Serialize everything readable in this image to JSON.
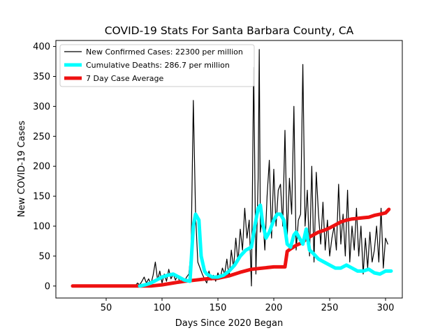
{
  "chart_data": {
    "type": "line",
    "title": "COVID-19 Stats For Santa Barbara County, CA",
    "xlabel": "Days Since 2020 Began",
    "ylabel": "New COVID-19 Cases",
    "xlim": [
      5,
      315
    ],
    "ylim": [
      -20,
      410
    ],
    "xticks": [
      50,
      100,
      150,
      200,
      250,
      300
    ],
    "yticks": [
      0,
      50,
      100,
      150,
      200,
      250,
      300,
      350,
      400
    ],
    "grid": false,
    "legend_position": "top-left",
    "series": [
      {
        "name": "New Confirmed Cases: 22300 per million",
        "color": "#000000",
        "style": "thin",
        "x": [
          76,
          78,
          80,
          82,
          84,
          86,
          88,
          90,
          92,
          94,
          96,
          98,
          100,
          102,
          104,
          106,
          108,
          110,
          112,
          114,
          116,
          118,
          120,
          122,
          124,
          126,
          128,
          130,
          132,
          134,
          136,
          138,
          140,
          142,
          144,
          146,
          148,
          150,
          152,
          154,
          156,
          158,
          160,
          162,
          164,
          166,
          168,
          170,
          172,
          174,
          176,
          178,
          180,
          182,
          184,
          186,
          187,
          188,
          190,
          192,
          194,
          196,
          198,
          200,
          202,
          204,
          206,
          208,
          210,
          212,
          214,
          216,
          218,
          220,
          222,
          224,
          226,
          228,
          230,
          232,
          234,
          236,
          238,
          240,
          242,
          244,
          246,
          248,
          250,
          252,
          254,
          256,
          258,
          260,
          262,
          264,
          266,
          268,
          270,
          272,
          274,
          276,
          278,
          280,
          282,
          284,
          286,
          288,
          290,
          292,
          294,
          296,
          298,
          300,
          302
        ],
        "y": [
          0,
          5,
          2,
          8,
          15,
          5,
          12,
          3,
          18,
          40,
          10,
          25,
          5,
          20,
          8,
          28,
          12,
          20,
          10,
          18,
          5,
          12,
          8,
          15,
          20,
          60,
          310,
          120,
          40,
          30,
          20,
          12,
          5,
          25,
          10,
          18,
          8,
          22,
          12,
          30,
          20,
          45,
          15,
          60,
          30,
          80,
          40,
          95,
          60,
          130,
          80,
          110,
          0,
          365,
          20,
          180,
          395,
          90,
          120,
          60,
          150,
          210,
          80,
          195,
          100,
          160,
          170,
          100,
          260,
          80,
          180,
          120,
          300,
          60,
          110,
          120,
          370,
          100,
          160,
          50,
          200,
          40,
          190,
          120,
          70,
          140,
          60,
          110,
          50,
          80,
          100,
          60,
          170,
          70,
          120,
          50,
          160,
          40,
          100,
          60,
          130,
          50,
          100,
          20,
          80,
          30,
          90,
          40,
          60,
          100,
          40,
          130,
          30,
          80,
          70
        ]
      },
      {
        "name": "Cumulative Deaths: 286.7 per million",
        "color": "#00ffff",
        "style": "thick",
        "x": [
          80,
          85,
          90,
          95,
          100,
          105,
          110,
          115,
          120,
          125,
          128,
          130,
          133,
          135,
          138,
          140,
          145,
          150,
          155,
          160,
          165,
          170,
          175,
          180,
          183,
          186,
          188,
          190,
          193,
          196,
          200,
          203,
          206,
          209,
          212,
          215,
          218,
          220,
          223,
          226,
          229,
          232,
          235,
          240,
          245,
          250,
          255,
          260,
          265,
          270,
          275,
          280,
          285,
          290,
          295,
          300,
          305
        ],
        "y": [
          0,
          2,
          5,
          10,
          15,
          18,
          20,
          15,
          10,
          8,
          100,
          120,
          110,
          50,
          25,
          20,
          15,
          15,
          18,
          25,
          35,
          50,
          60,
          65,
          100,
          130,
          135,
          105,
          80,
          90,
          110,
          120,
          120,
          110,
          70,
          65,
          85,
          90,
          80,
          70,
          95,
          60,
          55,
          45,
          40,
          35,
          30,
          30,
          35,
          30,
          25,
          25,
          28,
          22,
          20,
          25,
          25
        ]
      },
      {
        "name": "7 Day Case Average",
        "color": "#ee1111",
        "style": "thick",
        "x": [
          20,
          40,
          60,
          80,
          90,
          100,
          110,
          120,
          130,
          140,
          150,
          160,
          170,
          180,
          190,
          200,
          205,
          210,
          212,
          215,
          220,
          225,
          230,
          235,
          240,
          245,
          250,
          255,
          260,
          265,
          270,
          275,
          280,
          285,
          290,
          295,
          300,
          303
        ],
        "y": [
          0,
          0,
          0,
          0,
          0,
          2,
          5,
          8,
          10,
          12,
          13,
          17,
          23,
          28,
          30,
          32,
          32,
          32,
          58,
          62,
          68,
          72,
          80,
          85,
          90,
          93,
          97,
          102,
          107,
          110,
          112,
          113,
          114,
          115,
          118,
          120,
          122,
          128
        ]
      }
    ]
  }
}
